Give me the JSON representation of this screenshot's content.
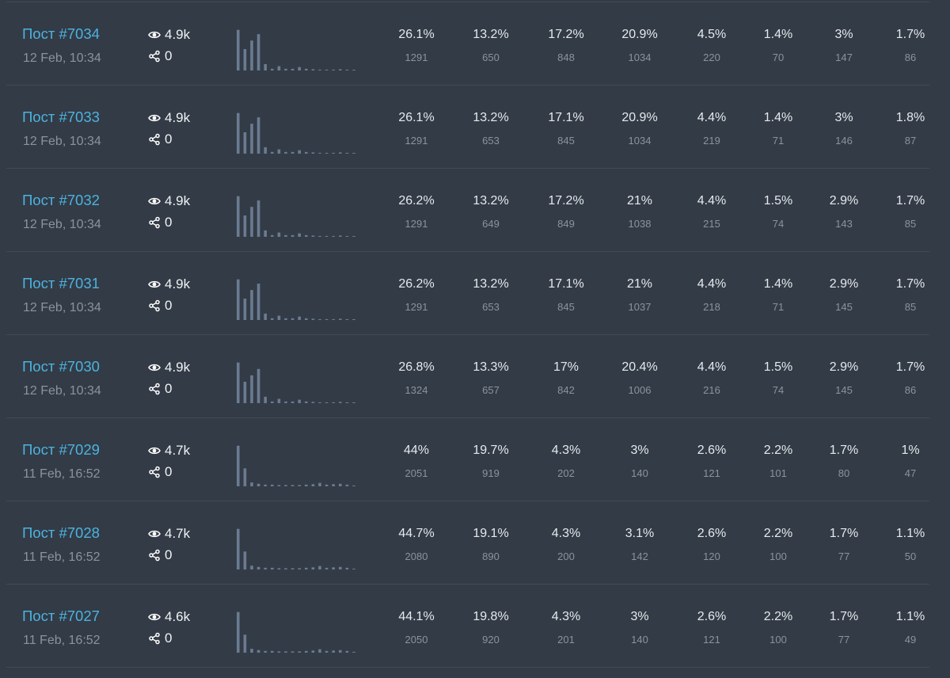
{
  "colors": {
    "background": "#333b46",
    "divider": "#414a56",
    "link": "#4bb3e0",
    "muted": "#8a939e",
    "bar": "#6a7b91"
  },
  "icons": {
    "views": "eye-icon",
    "shares": "share-icon"
  },
  "posts": [
    {
      "title": "Пост #7034",
      "date": "12 Feb, 10:34",
      "views": "4.9k",
      "shares": "0",
      "histogram": [
        0.95,
        0.5,
        0.7,
        0.85,
        0.15,
        0.04,
        0.1,
        0.04,
        0.04,
        0.08,
        0.04,
        0.03,
        0.02,
        0.02,
        0.02,
        0.03,
        0.02,
        0.01
      ],
      "stats": [
        {
          "pct": "26.1%",
          "count": "1291"
        },
        {
          "pct": "13.2%",
          "count": "650"
        },
        {
          "pct": "17.2%",
          "count": "848"
        },
        {
          "pct": "20.9%",
          "count": "1034"
        },
        {
          "pct": "4.5%",
          "count": "220"
        },
        {
          "pct": "1.4%",
          "count": "70"
        },
        {
          "pct": "3%",
          "count": "147"
        },
        {
          "pct": "1.7%",
          "count": "86"
        }
      ]
    },
    {
      "title": "Пост #7033",
      "date": "12 Feb, 10:34",
      "views": "4.9k",
      "shares": "0",
      "histogram": [
        0.95,
        0.5,
        0.7,
        0.85,
        0.15,
        0.04,
        0.1,
        0.04,
        0.04,
        0.08,
        0.04,
        0.03,
        0.02,
        0.02,
        0.02,
        0.03,
        0.02,
        0.01
      ],
      "stats": [
        {
          "pct": "26.1%",
          "count": "1291"
        },
        {
          "pct": "13.2%",
          "count": "653"
        },
        {
          "pct": "17.1%",
          "count": "845"
        },
        {
          "pct": "20.9%",
          "count": "1034"
        },
        {
          "pct": "4.4%",
          "count": "219"
        },
        {
          "pct": "1.4%",
          "count": "71"
        },
        {
          "pct": "3%",
          "count": "146"
        },
        {
          "pct": "1.8%",
          "count": "87"
        }
      ]
    },
    {
      "title": "Пост #7032",
      "date": "12 Feb, 10:34",
      "views": "4.9k",
      "shares": "0",
      "histogram": [
        0.95,
        0.5,
        0.7,
        0.85,
        0.15,
        0.04,
        0.1,
        0.04,
        0.04,
        0.08,
        0.04,
        0.03,
        0.02,
        0.02,
        0.02,
        0.03,
        0.02,
        0.01
      ],
      "stats": [
        {
          "pct": "26.2%",
          "count": "1291"
        },
        {
          "pct": "13.2%",
          "count": "649"
        },
        {
          "pct": "17.2%",
          "count": "849"
        },
        {
          "pct": "21%",
          "count": "1038"
        },
        {
          "pct": "4.4%",
          "count": "215"
        },
        {
          "pct": "1.5%",
          "count": "74"
        },
        {
          "pct": "2.9%",
          "count": "143"
        },
        {
          "pct": "1.7%",
          "count": "85"
        }
      ]
    },
    {
      "title": "Пост #7031",
      "date": "12 Feb, 10:34",
      "views": "4.9k",
      "shares": "0",
      "histogram": [
        0.95,
        0.5,
        0.7,
        0.85,
        0.15,
        0.04,
        0.1,
        0.04,
        0.04,
        0.08,
        0.04,
        0.03,
        0.02,
        0.02,
        0.02,
        0.03,
        0.02,
        0.01
      ],
      "stats": [
        {
          "pct": "26.2%",
          "count": "1291"
        },
        {
          "pct": "13.2%",
          "count": "653"
        },
        {
          "pct": "17.1%",
          "count": "845"
        },
        {
          "pct": "21%",
          "count": "1037"
        },
        {
          "pct": "4.4%",
          "count": "218"
        },
        {
          "pct": "1.4%",
          "count": "71"
        },
        {
          "pct": "2.9%",
          "count": "145"
        },
        {
          "pct": "1.7%",
          "count": "85"
        }
      ]
    },
    {
      "title": "Пост #7030",
      "date": "12 Feb, 10:34",
      "views": "4.9k",
      "shares": "0",
      "histogram": [
        0.95,
        0.5,
        0.65,
        0.8,
        0.15,
        0.04,
        0.1,
        0.04,
        0.04,
        0.08,
        0.04,
        0.03,
        0.02,
        0.02,
        0.02,
        0.03,
        0.02,
        0.01
      ],
      "stats": [
        {
          "pct": "26.8%",
          "count": "1324"
        },
        {
          "pct": "13.3%",
          "count": "657"
        },
        {
          "pct": "17%",
          "count": "842"
        },
        {
          "pct": "20.4%",
          "count": "1006"
        },
        {
          "pct": "4.4%",
          "count": "216"
        },
        {
          "pct": "1.5%",
          "count": "74"
        },
        {
          "pct": "2.9%",
          "count": "145"
        },
        {
          "pct": "1.7%",
          "count": "86"
        }
      ]
    },
    {
      "title": "Пост #7029",
      "date": "11 Feb, 16:52",
      "views": "4.7k",
      "shares": "0",
      "histogram": [
        0.95,
        0.42,
        0.09,
        0.06,
        0.04,
        0.04,
        0.03,
        0.03,
        0.03,
        0.03,
        0.04,
        0.05,
        0.08,
        0.04,
        0.05,
        0.06,
        0.04,
        0.02
      ],
      "stats": [
        {
          "pct": "44%",
          "count": "2051"
        },
        {
          "pct": "19.7%",
          "count": "919"
        },
        {
          "pct": "4.3%",
          "count": "202"
        },
        {
          "pct": "3%",
          "count": "140"
        },
        {
          "pct": "2.6%",
          "count": "121"
        },
        {
          "pct": "2.2%",
          "count": "101"
        },
        {
          "pct": "1.7%",
          "count": "80"
        },
        {
          "pct": "1%",
          "count": "47"
        }
      ]
    },
    {
      "title": "Пост #7028",
      "date": "11 Feb, 16:52",
      "views": "4.7k",
      "shares": "0",
      "histogram": [
        0.95,
        0.42,
        0.09,
        0.06,
        0.04,
        0.04,
        0.03,
        0.03,
        0.03,
        0.03,
        0.04,
        0.05,
        0.08,
        0.04,
        0.05,
        0.06,
        0.04,
        0.02
      ],
      "stats": [
        {
          "pct": "44.7%",
          "count": "2080"
        },
        {
          "pct": "19.1%",
          "count": "890"
        },
        {
          "pct": "4.3%",
          "count": "200"
        },
        {
          "pct": "3.1%",
          "count": "142"
        },
        {
          "pct": "2.6%",
          "count": "120"
        },
        {
          "pct": "2.2%",
          "count": "100"
        },
        {
          "pct": "1.7%",
          "count": "77"
        },
        {
          "pct": "1.1%",
          "count": "50"
        }
      ]
    },
    {
      "title": "Пост #7027",
      "date": "11 Feb, 16:52",
      "views": "4.6k",
      "shares": "0",
      "histogram": [
        0.95,
        0.42,
        0.09,
        0.06,
        0.04,
        0.04,
        0.03,
        0.03,
        0.03,
        0.03,
        0.04,
        0.05,
        0.08,
        0.04,
        0.05,
        0.06,
        0.04,
        0.02
      ],
      "stats": [
        {
          "pct": "44.1%",
          "count": "2050"
        },
        {
          "pct": "19.8%",
          "count": "920"
        },
        {
          "pct": "4.3%",
          "count": "201"
        },
        {
          "pct": "3%",
          "count": "140"
        },
        {
          "pct": "2.6%",
          "count": "121"
        },
        {
          "pct": "2.2%",
          "count": "100"
        },
        {
          "pct": "1.7%",
          "count": "77"
        },
        {
          "pct": "1.1%",
          "count": "49"
        }
      ]
    }
  ]
}
